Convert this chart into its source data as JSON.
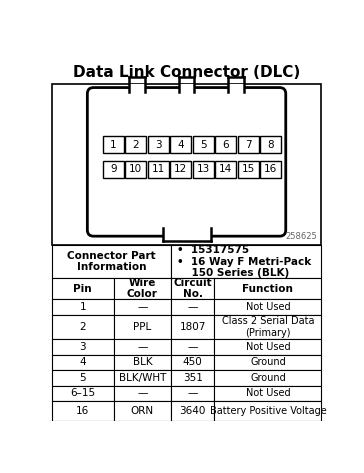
{
  "title": "Data Link Connector (DLC)",
  "connector_part_label": "Connector Part\nInformation",
  "right_cell_text": "•  15317575\n•  16 Way F Metri-Pack\n    150 Series (BLK)",
  "part_number": "258625",
  "table_headers": [
    "Pin",
    "Wire\nColor",
    "Circuit\nNo.",
    "Function"
  ],
  "table_rows": [
    [
      "1",
      "—",
      "—",
      "Not Used"
    ],
    [
      "2",
      "PPL",
      "1807",
      "Class 2 Serial Data\n(Primary)"
    ],
    [
      "3",
      "—",
      "—",
      "Not Used"
    ],
    [
      "4",
      "BLK",
      "450",
      "Ground"
    ],
    [
      "5",
      "BLK/WHT",
      "351",
      "Ground"
    ],
    [
      "6–15",
      "—",
      "—",
      "Not Used"
    ],
    [
      "16",
      "ORN",
      "3640",
      "Battery Positive Voltage"
    ]
  ],
  "pins_row1": [
    "1",
    "2",
    "3",
    "4",
    "5",
    "6",
    "7",
    "8"
  ],
  "pins_row2": [
    "9",
    "10",
    "11",
    "12",
    "13",
    "14",
    "15",
    "16"
  ],
  "bg_color": "#ffffff"
}
